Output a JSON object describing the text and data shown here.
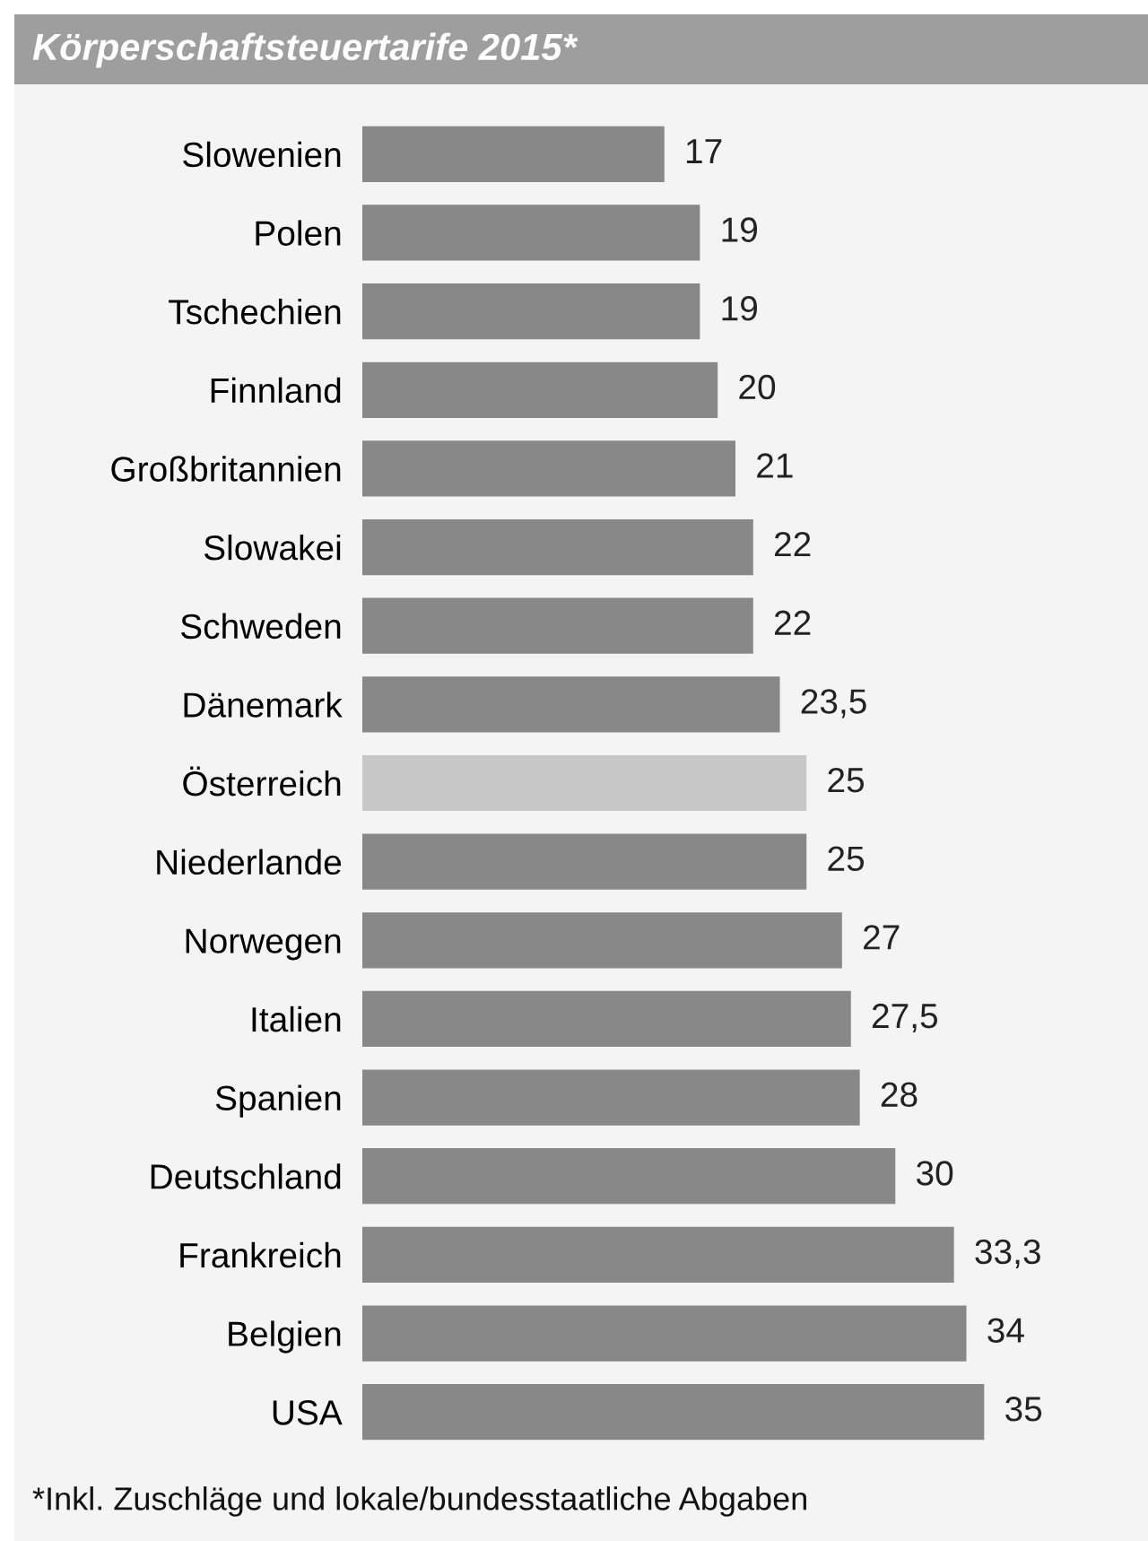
{
  "chart_data": {
    "type": "bar",
    "orientation": "horizontal",
    "title": "Körperschaftsteuertarife 2015*",
    "categories": [
      "Slowenien",
      "Polen",
      "Tschechien",
      "Finnland",
      "Großbritannien",
      "Slowakei",
      "Schweden",
      "Dänemark",
      "Österreich",
      "Niederlande",
      "Norwegen",
      "Italien",
      "Spanien",
      "Deutschland",
      "Frankreich",
      "Belgien",
      "USA"
    ],
    "values": [
      17,
      19,
      19,
      20,
      21,
      22,
      22,
      23.5,
      25,
      25,
      27,
      27.5,
      28,
      30,
      33.3,
      34,
      35
    ],
    "value_labels": [
      "17",
      "19",
      "19",
      "20",
      "21",
      "22",
      "22",
      "23,5",
      "25",
      "25",
      "27",
      "27,5",
      "28",
      "30",
      "33,3",
      "34",
      "35"
    ],
    "colors": [
      "#888888",
      "#888888",
      "#888888",
      "#888888",
      "#888888",
      "#888888",
      "#888888",
      "#888888",
      "#c6c7c6",
      "#888888",
      "#888888",
      "#888888",
      "#888888",
      "#888888",
      "#888888",
      "#888888",
      "#888888"
    ],
    "tick_labels": "y",
    "grid": false,
    "legend": false,
    "annotations": [
      "*Inkl. Zuschläge und lokale/bundesstaatliche Abgaben"
    ]
  }
}
